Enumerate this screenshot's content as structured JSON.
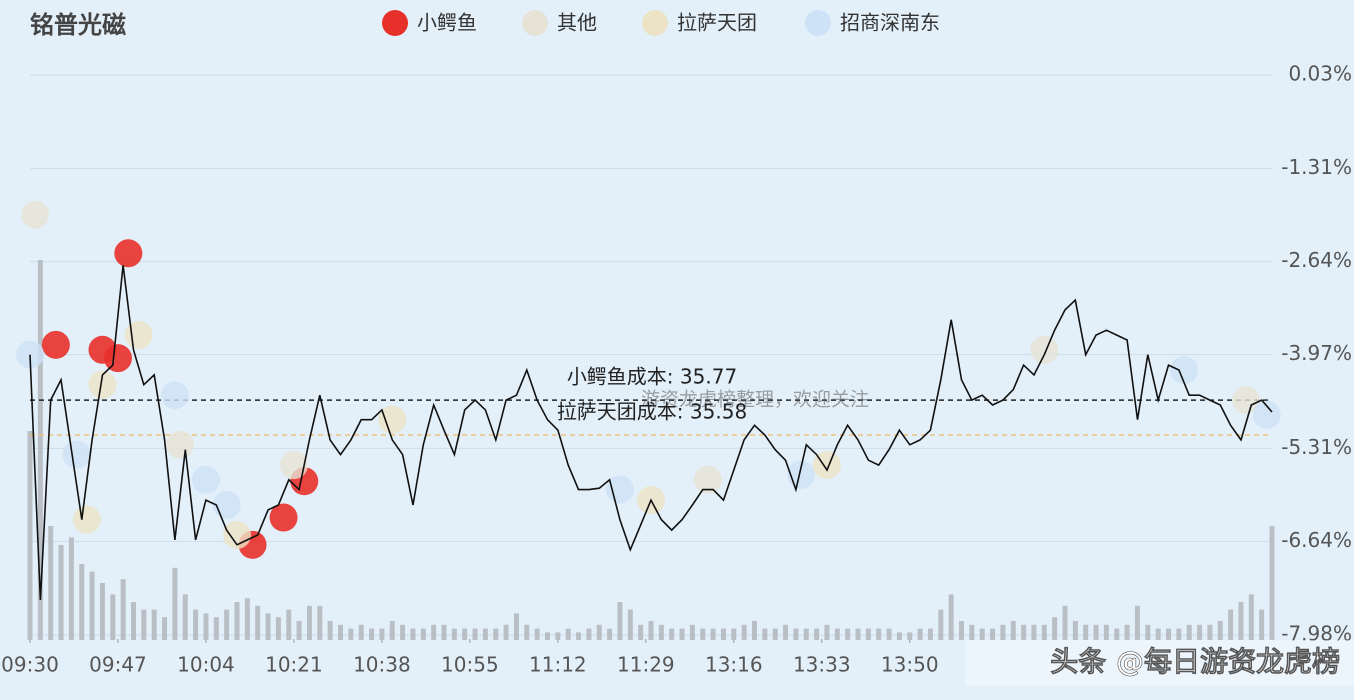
{
  "chart_data": {
    "type": "line",
    "title": "铭普光磁",
    "line_color": "#111111",
    "xlim": [
      0,
      240
    ],
    "xticks": [
      {
        "value": 0,
        "label": "09:30"
      },
      {
        "value": 17,
        "label": "09:47"
      },
      {
        "value": 34,
        "label": "10:04"
      },
      {
        "value": 51,
        "label": "10:21"
      },
      {
        "value": 68,
        "label": "10:38"
      },
      {
        "value": 85,
        "label": "10:55"
      },
      {
        "value": 102,
        "label": "11:12"
      },
      {
        "value": 119,
        "label": "11:29"
      },
      {
        "value": 136,
        "label": "13:16"
      },
      {
        "value": 153,
        "label": "13:33"
      },
      {
        "value": 170,
        "label": "13:50"
      }
    ],
    "ylim": [
      -7.98,
      0.03
    ],
    "yticks": [
      {
        "value": 0.03,
        "label": "0.03%"
      },
      {
        "value": -1.31,
        "label": "-1.31%"
      },
      {
        "value": -2.64,
        "label": "-2.64%"
      },
      {
        "value": -3.97,
        "label": "-3.97%"
      },
      {
        "value": -5.31,
        "label": "-5.31%"
      },
      {
        "value": -6.64,
        "label": "-6.64%"
      },
      {
        "value": -7.98,
        "label": "-7.98%"
      }
    ],
    "grid": true,
    "x": [
      0,
      2,
      4,
      6,
      8,
      10,
      12,
      14,
      16,
      18,
      20,
      22,
      24,
      26,
      28,
      30,
      32,
      34,
      36,
      38,
      40,
      42,
      44,
      46,
      48,
      50,
      52,
      54,
      56,
      58,
      60,
      62,
      64,
      66,
      68,
      70,
      72,
      74,
      76,
      78,
      80,
      82,
      84,
      86,
      88,
      90,
      92,
      94,
      96,
      98,
      100,
      102,
      104,
      106,
      108,
      110,
      112,
      114,
      116,
      118,
      120,
      122,
      124,
      126,
      128,
      130,
      132,
      134,
      136,
      138,
      140,
      142,
      144,
      146,
      148,
      150,
      152,
      154,
      156,
      158,
      160,
      162,
      164,
      166,
      168,
      170,
      172,
      174,
      176,
      178,
      180,
      182,
      184,
      186,
      188,
      190,
      192,
      194,
      196,
      198,
      200,
      202,
      204,
      206,
      208,
      210,
      212,
      214,
      216,
      218,
      220,
      222,
      224,
      226,
      228,
      230,
      232,
      234,
      236,
      238,
      240
    ],
    "values": [
      -3.97,
      -7.48,
      -4.62,
      -4.33,
      -5.33,
      -6.33,
      -5.19,
      -4.26,
      -4.12,
      -2.69,
      -3.9,
      -4.4,
      -4.26,
      -5.19,
      -6.62,
      -5.33,
      -6.62,
      -6.05,
      -6.12,
      -6.48,
      -6.69,
      -6.62,
      -6.55,
      -6.19,
      -6.12,
      -5.76,
      -5.9,
      -5.19,
      -4.55,
      -5.19,
      -5.4,
      -5.19,
      -4.9,
      -4.9,
      -4.76,
      -5.19,
      -5.4,
      -6.12,
      -5.26,
      -4.69,
      -5.05,
      -5.4,
      -4.76,
      -4.62,
      -4.76,
      -5.19,
      -4.62,
      -4.55,
      -4.19,
      -4.62,
      -4.9,
      -5.05,
      -5.55,
      -5.9,
      -5.9,
      -5.88,
      -5.76,
      -6.33,
      -6.76,
      -6.41,
      -6.05,
      -6.33,
      -6.48,
      -6.33,
      -6.12,
      -5.9,
      -5.9,
      -6.05,
      -5.62,
      -5.19,
      -4.98,
      -5.12,
      -5.33,
      -5.48,
      -5.9,
      -5.26,
      -5.4,
      -5.62,
      -5.26,
      -4.98,
      -5.19,
      -5.48,
      -5.55,
      -5.33,
      -5.05,
      -5.26,
      -5.19,
      -5.05,
      -4.33,
      -3.47,
      -4.33,
      -4.62,
      -4.55,
      -4.69,
      -4.62,
      -4.47,
      -4.12,
      -4.26,
      -3.97,
      -3.62,
      -3.33,
      -3.19,
      -3.97,
      -3.69,
      -3.62,
      -3.69,
      -3.76,
      -4.9,
      -3.97,
      -4.62,
      -4.12,
      -4.19,
      -4.55,
      -4.55,
      -4.62,
      -4.69,
      -4.98,
      -5.19,
      -4.69,
      -4.62,
      -4.79
    ],
    "volume": {
      "color": "#b9bfc5",
      "vlim": [
        0,
        100
      ],
      "values": [
        55,
        100,
        30,
        25,
        27,
        20,
        18,
        15,
        12,
        16,
        10,
        8,
        8,
        6,
        19,
        12,
        8,
        7,
        6,
        8,
        10,
        11,
        9,
        7,
        6,
        8,
        5,
        9,
        9,
        5,
        4,
        3,
        4,
        3,
        3,
        5,
        4,
        3,
        3,
        4,
        4,
        3,
        3,
        3,
        3,
        3,
        4,
        7,
        4,
        3,
        2,
        2,
        3,
        2,
        3,
        4,
        3,
        10,
        8,
        4,
        5,
        4,
        3,
        3,
        4,
        3,
        3,
        3,
        3,
        4,
        5,
        3,
        3,
        4,
        3,
        3,
        3,
        4,
        3,
        3,
        3,
        3,
        3,
        3,
        2,
        2,
        3,
        3,
        8,
        12,
        5,
        4,
        3,
        3,
        4,
        5,
        4,
        4,
        4,
        6,
        9,
        5,
        4,
        4,
        4,
        3,
        4,
        9,
        4,
        3,
        3,
        3,
        4,
        4,
        4,
        5,
        8,
        10,
        12,
        8,
        30
      ]
    },
    "series": [
      {
        "name": "小鳄鱼",
        "color": "#e8302a",
        "x": [
          5,
          14,
          17,
          19,
          43,
          49,
          53
        ],
        "values": [
          -3.83,
          -3.9,
          -4.02,
          -2.52,
          -6.69,
          -6.3,
          -5.78
        ]
      },
      {
        "name": "其他",
        "color": "#e6e3d6",
        "x": [
          1,
          29,
          51,
          131,
          196,
          235
        ],
        "values": [
          -1.97,
          -5.26,
          -5.55,
          -5.76,
          -3.9,
          -4.62
        ]
      },
      {
        "name": "拉萨天团",
        "color": "#ece3c6",
        "x": [
          21,
          14,
          11,
          40,
          70,
          120,
          154
        ],
        "values": [
          -3.69,
          -4.4,
          -6.33,
          -6.55,
          -4.9,
          -6.05,
          -5.55
        ]
      },
      {
        "name": "招商深南东",
        "color": "#cde2f6",
        "x": [
          0,
          9,
          28,
          34,
          38,
          114,
          149,
          239,
          223
        ],
        "values": [
          -3.97,
          -5.4,
          -4.55,
          -5.76,
          -6.12,
          -5.9,
          -5.69,
          -4.83,
          -4.19
        ]
      }
    ],
    "reference_lines": [
      {
        "label": "小鳄鱼成本: 35.77",
        "value": -4.62,
        "color": "#222222"
      },
      {
        "label": "拉萨天团成本: 35.58",
        "value": -5.12,
        "color": "#f0c27a"
      }
    ],
    "watermarks": [
      "游资龙虎榜整理，欢迎关注",
      "头条 @每日游资龙虎榜"
    ]
  }
}
